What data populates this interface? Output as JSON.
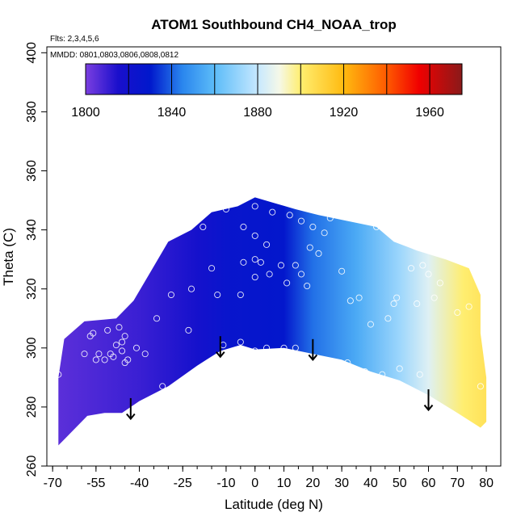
{
  "chart_data": {
    "type": "heatmap",
    "title": "ATOM1 Southbound CH4_NOAA_trop",
    "subtitle_flights": "Flts: 2,3,4,5,6",
    "subtitle_dates": "MMDD: 0801,0803,0806,0808,0812",
    "xlabel": "Latitude (deg N)",
    "ylabel": "Theta (C)",
    "xlim": [
      -72,
      85
    ],
    "ylim": [
      260,
      402
    ],
    "x_ticks": [
      -70,
      -55,
      -40,
      -25,
      -10,
      0,
      10,
      20,
      30,
      40,
      50,
      60,
      70,
      80
    ],
    "x_tick_labels": [
      "-70",
      "-55",
      "-40",
      "-25",
      "-10",
      "0",
      "10",
      "20",
      "30",
      "40",
      "50",
      "60",
      "70",
      "80"
    ],
    "y_ticks": [
      260,
      280,
      300,
      320,
      340,
      360,
      380,
      400
    ],
    "y_tick_labels": [
      "260",
      "280",
      "300",
      "320",
      "340",
      "360",
      "380",
      "400"
    ],
    "colorbar": {
      "min": 1800,
      "max": 1975,
      "tick_values": [
        1800,
        1840,
        1880,
        1920,
        1960
      ],
      "tick_labels": [
        "1800",
        "1840",
        "1880",
        "1920",
        "1960"
      ],
      "stops": [
        {
          "value": 1800,
          "color": "#7b3fe0"
        },
        {
          "value": 1815,
          "color": "#1a0fcc"
        },
        {
          "value": 1830,
          "color": "#0018cc"
        },
        {
          "value": 1845,
          "color": "#2a86ee"
        },
        {
          "value": 1860,
          "color": "#5cbcf8"
        },
        {
          "value": 1880,
          "color": "#c6e8ff"
        },
        {
          "value": 1890,
          "color": "#f5f8e8"
        },
        {
          "value": 1900,
          "color": "#ffee70"
        },
        {
          "value": 1920,
          "color": "#ffba10"
        },
        {
          "value": 1940,
          "color": "#ff5a00"
        },
        {
          "value": 1955,
          "color": "#f00000"
        },
        {
          "value": 1975,
          "color": "#8a1a1a"
        }
      ]
    },
    "field_anchors": [
      {
        "lat": -68,
        "ch4": 1805
      },
      {
        "lat": -40,
        "ch4": 1810
      },
      {
        "lat": -20,
        "ch4": 1818
      },
      {
        "lat": -10,
        "ch4": 1825
      },
      {
        "lat": 10,
        "ch4": 1828
      },
      {
        "lat": 20,
        "ch4": 1842
      },
      {
        "lat": 35,
        "ch4": 1855
      },
      {
        "lat": 50,
        "ch4": 1872
      },
      {
        "lat": 60,
        "ch4": 1885
      },
      {
        "lat": 72,
        "ch4": 1900
      },
      {
        "lat": 80,
        "ch4": 1905
      }
    ],
    "data_envelope_top": [
      {
        "lat": -68,
        "theta": 290
      },
      {
        "lat": -66,
        "theta": 303
      },
      {
        "lat": -59,
        "theta": 309
      },
      {
        "lat": -48,
        "theta": 310
      },
      {
        "lat": -42,
        "theta": 316
      },
      {
        "lat": -36,
        "theta": 326
      },
      {
        "lat": -30,
        "theta": 336
      },
      {
        "lat": -22,
        "theta": 340
      },
      {
        "lat": -15,
        "theta": 346
      },
      {
        "lat": -6,
        "theta": 348
      },
      {
        "lat": 0,
        "theta": 351
      },
      {
        "lat": 7,
        "theta": 349
      },
      {
        "lat": 14,
        "theta": 347
      },
      {
        "lat": 22,
        "theta": 345
      },
      {
        "lat": 32,
        "theta": 343
      },
      {
        "lat": 42,
        "theta": 341
      },
      {
        "lat": 48,
        "theta": 336
      },
      {
        "lat": 56,
        "theta": 333
      },
      {
        "lat": 66,
        "theta": 330
      },
      {
        "lat": 74,
        "theta": 327
      },
      {
        "lat": 78,
        "theta": 318
      },
      {
        "lat": 78,
        "theta": 305
      },
      {
        "lat": 80,
        "theta": 290
      },
      {
        "lat": 80,
        "theta": 275
      }
    ],
    "data_envelope_bottom": [
      {
        "lat": 78,
        "theta": 273
      },
      {
        "lat": 70,
        "theta": 278
      },
      {
        "lat": 60,
        "theta": 284
      },
      {
        "lat": 50,
        "theta": 289
      },
      {
        "lat": 40,
        "theta": 292
      },
      {
        "lat": 30,
        "theta": 296
      },
      {
        "lat": 20,
        "theta": 298
      },
      {
        "lat": 10,
        "theta": 300
      },
      {
        "lat": 0,
        "theta": 299.5
      },
      {
        "lat": -5,
        "theta": 301
      },
      {
        "lat": -12,
        "theta": 299
      },
      {
        "lat": -20,
        "theta": 294
      },
      {
        "lat": -30,
        "theta": 287
      },
      {
        "lat": -40,
        "theta": 282
      },
      {
        "lat": -46,
        "theta": 278
      },
      {
        "lat": -52,
        "theta": 278
      },
      {
        "lat": -58,
        "theta": 277
      },
      {
        "lat": -62,
        "theta": 273
      },
      {
        "lat": -66,
        "theta": 269
      },
      {
        "lat": -68,
        "theta": 267
      }
    ],
    "observations": [
      {
        "lat": -68,
        "theta": 291
      },
      {
        "lat": -59,
        "theta": 298
      },
      {
        "lat": -57,
        "theta": 304
      },
      {
        "lat": -56,
        "theta": 305
      },
      {
        "lat": -55,
        "theta": 296
      },
      {
        "lat": -54,
        "theta": 298
      },
      {
        "lat": -52,
        "theta": 296
      },
      {
        "lat": -51,
        "theta": 306
      },
      {
        "lat": -50,
        "theta": 298
      },
      {
        "lat": -49,
        "theta": 297
      },
      {
        "lat": -48,
        "theta": 301
      },
      {
        "lat": -47,
        "theta": 307
      },
      {
        "lat": -46,
        "theta": 302
      },
      {
        "lat": -46,
        "theta": 299
      },
      {
        "lat": -45,
        "theta": 295
      },
      {
        "lat": -45,
        "theta": 304
      },
      {
        "lat": -44,
        "theta": 296
      },
      {
        "lat": -41,
        "theta": 300
      },
      {
        "lat": -38,
        "theta": 298
      },
      {
        "lat": -34,
        "theta": 310
      },
      {
        "lat": -32,
        "theta": 287
      },
      {
        "lat": -29,
        "theta": 318
      },
      {
        "lat": -23,
        "theta": 306
      },
      {
        "lat": -22,
        "theta": 320
      },
      {
        "lat": -25,
        "theta": 341
      },
      {
        "lat": -18,
        "theta": 341
      },
      {
        "lat": -15,
        "theta": 327
      },
      {
        "lat": -13,
        "theta": 318
      },
      {
        "lat": -11,
        "theta": 301
      },
      {
        "lat": -10,
        "theta": 347
      },
      {
        "lat": -5,
        "theta": 302
      },
      {
        "lat": -4,
        "theta": 329
      },
      {
        "lat": -5,
        "theta": 318
      },
      {
        "lat": -4,
        "theta": 341
      },
      {
        "lat": 0,
        "theta": 330
      },
      {
        "lat": 0,
        "theta": 324
      },
      {
        "lat": 0,
        "theta": 338
      },
      {
        "lat": 0,
        "theta": 299
      },
      {
        "lat": 0,
        "theta": 348
      },
      {
        "lat": 2,
        "theta": 329
      },
      {
        "lat": 4,
        "theta": 300
      },
      {
        "lat": 4,
        "theta": 335
      },
      {
        "lat": 5,
        "theta": 325
      },
      {
        "lat": 6,
        "theta": 346
      },
      {
        "lat": 9,
        "theta": 328
      },
      {
        "lat": 10,
        "theta": 300
      },
      {
        "lat": 11,
        "theta": 322
      },
      {
        "lat": 12,
        "theta": 345
      },
      {
        "lat": 14,
        "theta": 328
      },
      {
        "lat": 14,
        "theta": 300
      },
      {
        "lat": 16,
        "theta": 343
      },
      {
        "lat": 16,
        "theta": 325
      },
      {
        "lat": 18,
        "theta": 321
      },
      {
        "lat": 19,
        "theta": 334
      },
      {
        "lat": 20,
        "theta": 341
      },
      {
        "lat": 22,
        "theta": 332
      },
      {
        "lat": 24,
        "theta": 339
      },
      {
        "lat": 26,
        "theta": 344
      },
      {
        "lat": 30,
        "theta": 326
      },
      {
        "lat": 32,
        "theta": 295
      },
      {
        "lat": 33,
        "theta": 316
      },
      {
        "lat": 36,
        "theta": 317
      },
      {
        "lat": 38,
        "theta": 292
      },
      {
        "lat": 40,
        "theta": 308
      },
      {
        "lat": 42,
        "theta": 341
      },
      {
        "lat": 44,
        "theta": 291
      },
      {
        "lat": 46,
        "theta": 310
      },
      {
        "lat": 48,
        "theta": 315
      },
      {
        "lat": 49,
        "theta": 317
      },
      {
        "lat": 50,
        "theta": 293
      },
      {
        "lat": 54,
        "theta": 327
      },
      {
        "lat": 56,
        "theta": 315
      },
      {
        "lat": 57,
        "theta": 291
      },
      {
        "lat": 58,
        "theta": 328
      },
      {
        "lat": 60,
        "theta": 325
      },
      {
        "lat": 62,
        "theta": 317
      },
      {
        "lat": 64,
        "theta": 322
      },
      {
        "lat": 68,
        "theta": 333
      },
      {
        "lat": 70,
        "theta": 312
      },
      {
        "lat": 74,
        "theta": 314
      },
      {
        "lat": 78,
        "theta": 287
      }
    ],
    "arrows": [
      {
        "lat": -43,
        "theta_top": 283,
        "theta_tip": 276
      },
      {
        "lat": -12,
        "theta_top": 304,
        "theta_tip": 297
      },
      {
        "lat": 20,
        "theta_top": 303,
        "theta_tip": 296
      },
      {
        "lat": 60,
        "theta_top": 286,
        "theta_tip": 279
      }
    ]
  }
}
